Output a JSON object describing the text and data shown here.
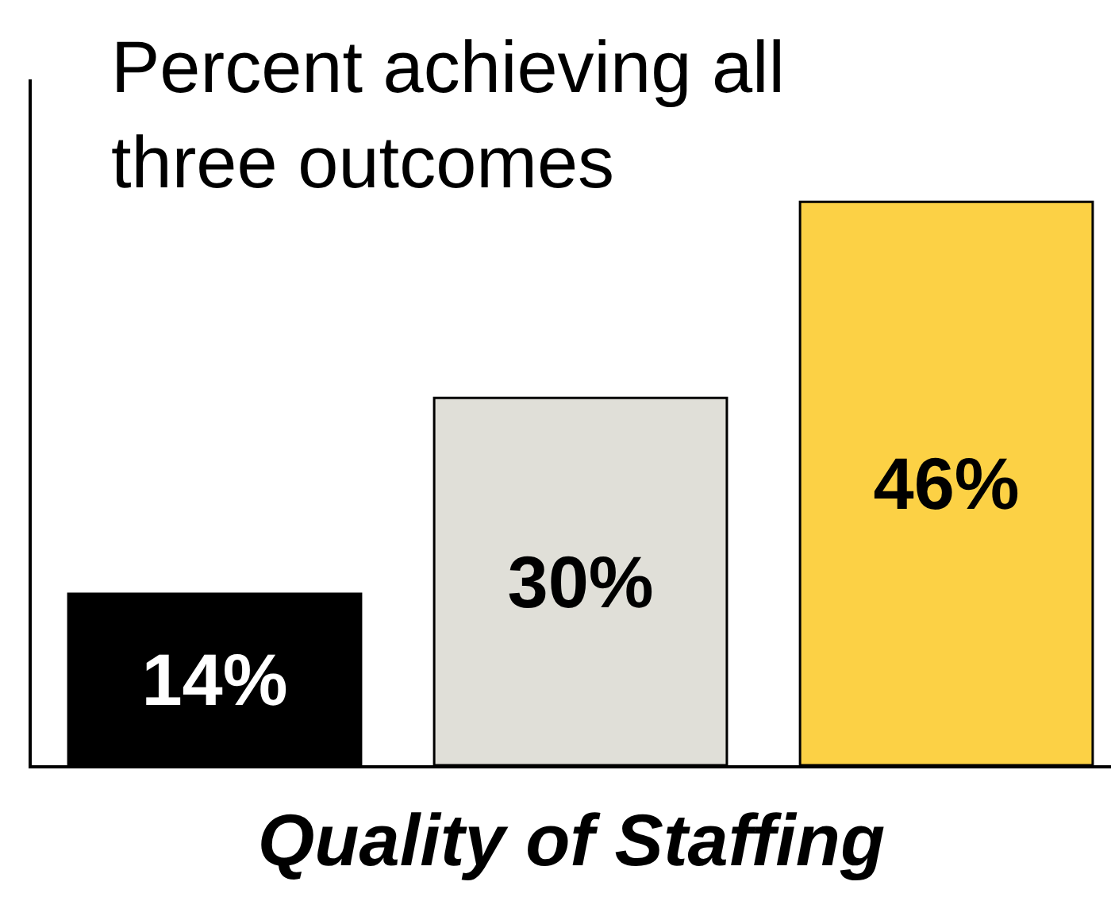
{
  "chart_data": {
    "type": "bar",
    "title": "Percent achieving all three outcomes",
    "xlabel": "Quality of Staffing",
    "categories": [
      null,
      null,
      null
    ],
    "values": [
      14,
      30,
      46
    ],
    "colors": [
      "#000000",
      "#e0dfd8",
      "#fcd145"
    ],
    "value_labels": [
      "14%",
      "30%",
      "46%"
    ],
    "ylim": [
      0,
      56
    ],
    "tick_labels": false,
    "legend": false
  }
}
